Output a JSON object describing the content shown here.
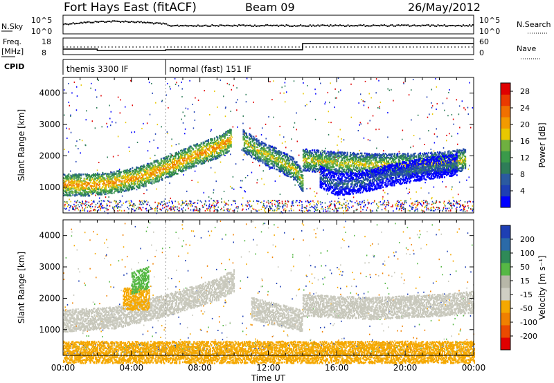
{
  "header": {
    "station": "Fort Hays East (fitACF)",
    "beam": "Beam 09",
    "date": "26/May/2012"
  },
  "status_panel": {
    "nsky_label": "N.Sky",
    "nsearch_label": "N.Search",
    "freq_label": "Freq.",
    "freq_unit": "[MHz]",
    "nave_label": "Nave",
    "cpid_label": "CPID",
    "left_ticks_noise": [
      "10^5",
      "10^0"
    ],
    "right_ticks_noise": [
      "10^5",
      "10^0"
    ],
    "left_ticks_freq": [
      "18",
      "8"
    ],
    "right_ticks_nave": [
      "60",
      "0"
    ],
    "cpid_modes": [
      {
        "label": "themis 3300 IF",
        "start_h": 0,
        "end_h": 6
      },
      {
        "label": "normal (fast) 151 IF",
        "start_h": 6,
        "end_h": 24
      }
    ]
  },
  "colors": {
    "power_scale": [
      "#0000ff",
      "#1e3fb4",
      "#2b5aa0",
      "#2e7d58",
      "#3a9a4a",
      "#6fb040",
      "#e8c800",
      "#f29a00",
      "#f07000",
      "#ea3a00",
      "#e00000"
    ],
    "velocity_scale": [
      "#1e3fb4",
      "#2b6aa8",
      "#2f8a58",
      "#56b845",
      "#b7b7a8",
      "#cfcfc4",
      "#f5a800",
      "#f08000",
      "#ea4a00",
      "#e00000"
    ]
  },
  "chart_data": [
    {
      "type": "heatmap",
      "title": "",
      "xlabel": "",
      "ylabel": "Slant Range [km]",
      "xlim": [
        0,
        24
      ],
      "ylim": [
        180,
        4500
      ],
      "x_tick_labels": [
        "00:00",
        "04:00",
        "08:00",
        "12:00",
        "16:00",
        "20:00",
        "00:00"
      ],
      "y_tick_labels": [
        "1000",
        "2000",
        "3000",
        "4000"
      ],
      "colorbar": {
        "label": "Power [dB]",
        "range": [
          0,
          30
        ],
        "tick_labels": [
          "4",
          "8",
          "12",
          "16",
          "20",
          "24",
          "28"
        ]
      },
      "bands": [
        {
          "x": [
            0.0,
            1.5,
            3.0,
            4.5,
            6.0,
            7.5,
            9.0,
            9.8
          ],
          "center_range": [
            1100,
            1100,
            1180,
            1350,
            1650,
            2000,
            2300,
            2550
          ],
          "value_dB": 22
        },
        {
          "x": [
            10.5,
            11.5,
            12.5,
            13.5,
            14.0
          ],
          "center_range": [
            2500,
            2150,
            1900,
            1600,
            1200
          ],
          "value_dB": 18
        },
        {
          "x": [
            14.0,
            16.0,
            18.0,
            20.0,
            22.0,
            23.5
          ],
          "center_range": [
            1900,
            1800,
            1750,
            1750,
            1800,
            1900
          ],
          "value_dB": 18
        },
        {
          "x": [
            15.0,
            16.0,
            17.5,
            19.0,
            21.0,
            23.0
          ],
          "center_range": [
            1350,
            1100,
            1200,
            1400,
            1600,
            1750
          ],
          "value_dB": 8
        }
      ]
    },
    {
      "type": "heatmap",
      "title": "",
      "xlabel": "Time UT",
      "ylabel": "Slant Range [km]",
      "xlim": [
        0,
        24
      ],
      "ylim": [
        180,
        4500
      ],
      "x_tick_labels": [
        "00:00",
        "04:00",
        "08:00",
        "12:00",
        "16:00",
        "20:00",
        "00:00"
      ],
      "y_tick_labels": [
        "1000",
        "2000",
        "3000",
        "4000"
      ],
      "colorbar": {
        "label": "Velocity [m s⁻¹]",
        "range": [
          -250,
          250
        ],
        "tick_labels": [
          "200",
          "100",
          "50",
          "15",
          "-15",
          "-50",
          "-100",
          "-200"
        ]
      },
      "bands": [
        {
          "x": [
            0.0,
            3.0,
            6.0,
            9.0,
            10.0
          ],
          "center_range": [
            1300,
            1400,
            1800,
            2300,
            2600
          ],
          "value_ms": 0
        },
        {
          "x": [
            3.5,
            5.0
          ],
          "center_range": [
            2000,
            2000
          ],
          "value_ms": -60
        },
        {
          "x": [
            4.0,
            5.0
          ],
          "center_range": [
            2500,
            2700
          ],
          "value_ms": 60
        },
        {
          "x": [
            11.0,
            12.5,
            14.0
          ],
          "center_range": [
            1700,
            1500,
            1300
          ],
          "value_ms": 0
        },
        {
          "x": [
            14.0,
            18.0,
            22.0,
            24.0
          ],
          "center_range": [
            1800,
            1700,
            1800,
            1900
          ],
          "value_ms": 0
        },
        {
          "x": [
            0.0,
            24.0
          ],
          "center_range": [
            300,
            300
          ],
          "value_ms": -80
        }
      ]
    }
  ]
}
